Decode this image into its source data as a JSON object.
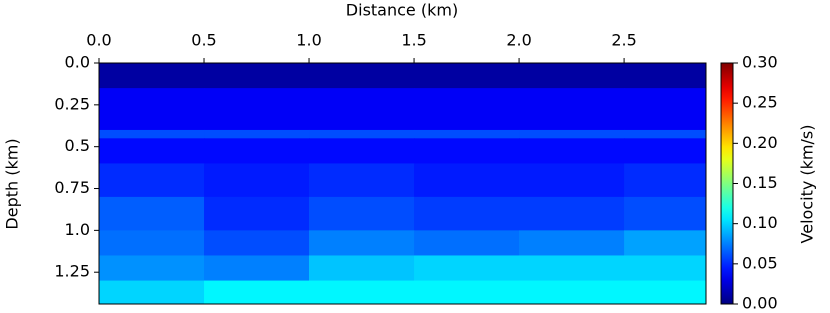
{
  "chart_data": {
    "type": "heatmap",
    "xlabel": "Distance (km)",
    "ylabel": "Depth (km)",
    "colorbar_label": "Velocity (km/s)",
    "colormap": "jet",
    "x_edges": [
      0,
      0.5,
      1.0,
      1.5,
      2.0,
      2.5,
      2.89
    ],
    "y_edges": [
      0,
      0.15,
      0.4,
      0.45,
      0.6,
      0.8,
      1.0,
      1.15,
      1.3,
      1.44
    ],
    "values": [
      [
        0.01,
        0.01,
        0.01,
        0.01,
        0.01,
        0.01
      ],
      [
        0.035,
        0.035,
        0.035,
        0.035,
        0.035,
        0.035
      ],
      [
        0.06,
        0.06,
        0.06,
        0.06,
        0.06,
        0.06
      ],
      [
        0.04,
        0.04,
        0.04,
        0.04,
        0.04,
        0.04
      ],
      [
        0.05,
        0.045,
        0.05,
        0.045,
        0.045,
        0.05
      ],
      [
        0.065,
        0.05,
        0.06,
        0.055,
        0.055,
        0.06
      ],
      [
        0.07,
        0.06,
        0.075,
        0.07,
        0.075,
        0.085
      ],
      [
        0.08,
        0.075,
        0.095,
        0.1,
        0.1,
        0.1
      ],
      [
        0.1,
        0.11,
        0.11,
        0.11,
        0.11,
        0.11
      ]
    ],
    "xlim": [
      0,
      2.89
    ],
    "ylim": [
      1.44,
      0
    ],
    "xticks": [
      {
        "value": 0,
        "label": "0.0"
      },
      0.5,
      {
        "value": 1,
        "label": "1.0"
      },
      1.5,
      {
        "value": 2,
        "label": "2.0"
      },
      2.5
    ],
    "yticks": [
      {
        "value": 0,
        "label": "0.0"
      },
      0.25,
      0.5,
      0.75,
      {
        "value": 1,
        "label": "1.0"
      },
      1.25
    ],
    "vlim": [
      0,
      0.3
    ],
    "cticks": [
      {
        "value": 0,
        "label": "0.00"
      },
      {
        "value": 0.05,
        "label": "0.05"
      },
      {
        "value": 0.1,
        "label": "0.10"
      },
      {
        "value": 0.15,
        "label": "0.15"
      },
      {
        "value": 0.2,
        "label": "0.20"
      },
      {
        "value": 0.25,
        "label": "0.25"
      },
      {
        "value": 0.3,
        "label": "0.30"
      }
    ]
  }
}
